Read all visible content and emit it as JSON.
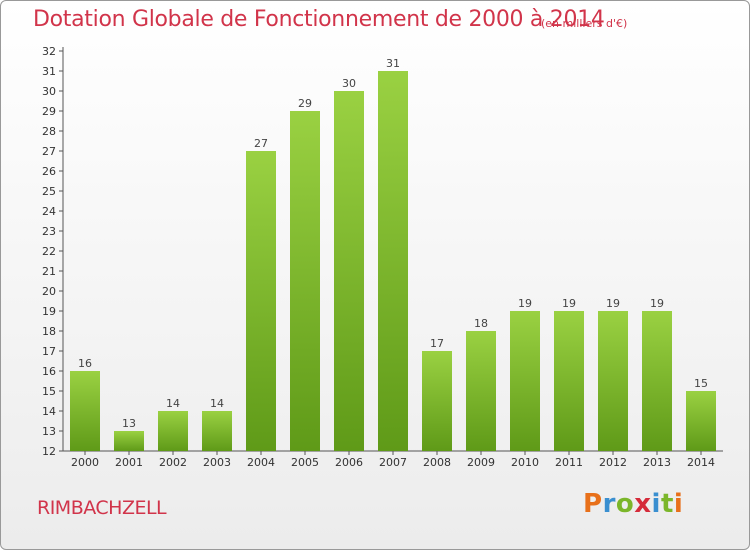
{
  "header": {
    "title": "Dotation Globale de Fonctionnement de 2000 à 2014",
    "subtitle": "(en milliers d'€)"
  },
  "footer": {
    "commune": "RIMBACHZELL",
    "logo_letters": [
      "P",
      "r",
      "o",
      "x",
      "i",
      "t",
      "i"
    ],
    "logo_colors": [
      "#e8701a",
      "#3a8fd0",
      "#7bb62a",
      "#d52b3a",
      "#3a8fd0",
      "#7bb62a",
      "#e8701a"
    ]
  },
  "colors": {
    "bar_top": "#9ad142",
    "bar_bottom": "#5f9a18",
    "title": "#d1344a"
  },
  "chart_data": {
    "type": "bar",
    "categories": [
      "2000",
      "2001",
      "2002",
      "2003",
      "2004",
      "2005",
      "2006",
      "2007",
      "2008",
      "2009",
      "2010",
      "2011",
      "2012",
      "2013",
      "2014"
    ],
    "values": [
      16,
      13,
      14,
      14,
      27,
      29,
      30,
      31,
      17,
      18,
      19,
      19,
      19,
      19,
      15
    ],
    "title": "Dotation Globale de Fonctionnement de 2000 à 2014",
    "subtitle": "(en milliers d'€)",
    "xlabel": "",
    "ylabel": "",
    "ylim": [
      12,
      32
    ],
    "yticks": [
      12,
      13,
      14,
      15,
      16,
      17,
      18,
      19,
      20,
      21,
      22,
      23,
      24,
      25,
      26,
      27,
      28,
      29,
      30,
      31,
      32
    ],
    "grid": false
  }
}
